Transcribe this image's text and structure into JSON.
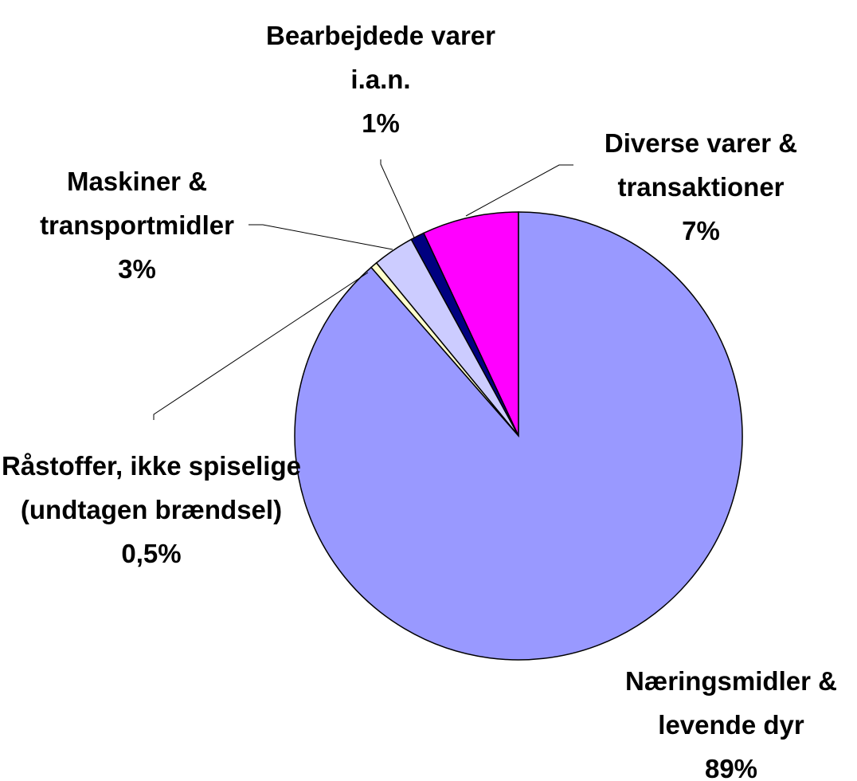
{
  "chart_data": {
    "type": "pie",
    "categories": [
      "Næringsmidler & levende dyr",
      "Råstoffer, ikke spiselige (undtagen brændsel)",
      "Maskiner & transportmidler",
      "Bearbejdede varer i.a.n.",
      "Diverse varer & transaktioner"
    ],
    "values": [
      89,
      0.5,
      3,
      1,
      7
    ],
    "value_labels": [
      "89%",
      "0,5%",
      "3%",
      "1%",
      "7%"
    ],
    "colors": [
      "#9999ff",
      "#ffffcc",
      "#ccccff",
      "#000080",
      "#ff00ff"
    ]
  }
}
